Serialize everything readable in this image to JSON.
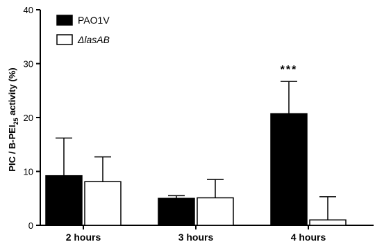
{
  "chart_data": {
    "type": "bar",
    "categories": [
      "2 hours",
      "3 hours",
      "4 hours"
    ],
    "series": [
      {
        "name": "PAO1V",
        "values": [
          9.2,
          5.0,
          20.7
        ],
        "errors": [
          7.0,
          0.5,
          6.0
        ],
        "fill": "#000000"
      },
      {
        "name": "ΔlasAB",
        "values": [
          8.1,
          5.1,
          1.0
        ],
        "errors": [
          4.6,
          3.4,
          4.3
        ],
        "fill": "#ffffff"
      }
    ],
    "ylabel": {
      "main": "PIC / B-PEI",
      "sub": "25",
      "tail": " activity (%)"
    },
    "ylim": [
      0,
      40
    ],
    "yticks": [
      "0",
      "10",
      "20",
      "30",
      "40"
    ],
    "annotations": [
      {
        "category_index": 2,
        "series_index": 0,
        "text": "***"
      }
    ],
    "legend_position": "top-left",
    "grid": false
  }
}
